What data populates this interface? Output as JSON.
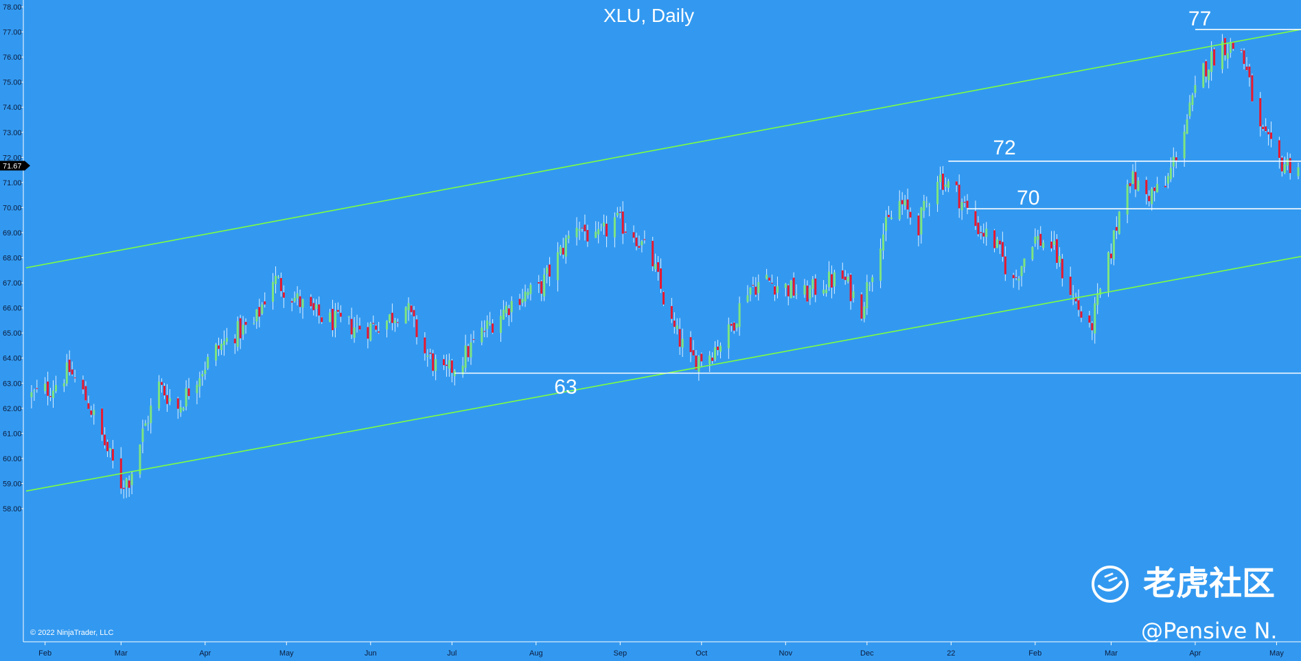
{
  "chart_data": {
    "type": "candlestick",
    "title": "XLU, Daily",
    "ylim": [
      57.5,
      78.2
    ],
    "y_ticks": [
      "58.00",
      "59.00",
      "60.00",
      "61.00",
      "62.00",
      "63.00",
      "64.00",
      "65.00",
      "66.00",
      "67.00",
      "68.00",
      "69.00",
      "70.00",
      "71.00",
      "72.00",
      "73.00",
      "74.00",
      "75.00",
      "76.00",
      "77.00",
      "78.00"
    ],
    "x_ticks": [
      {
        "label": "Feb",
        "date": "2021-02-01"
      },
      {
        "label": "Mar",
        "date": "2021-03-01"
      },
      {
        "label": "Apr",
        "date": "2021-04-01"
      },
      {
        "label": "May",
        "date": "2021-05-01"
      },
      {
        "label": "Jun",
        "date": "2021-06-01"
      },
      {
        "label": "Jul",
        "date": "2021-07-01"
      },
      {
        "label": "Aug",
        "date": "2021-08-01"
      },
      {
        "label": "Sep",
        "date": "2021-09-01"
      },
      {
        "label": "Oct",
        "date": "2021-10-01"
      },
      {
        "label": "Nov",
        "date": "2021-11-01"
      },
      {
        "label": "Dec",
        "date": "2021-12-01"
      },
      {
        "label": "22",
        "date": "2022-01-01"
      },
      {
        "label": "Feb",
        "date": "2022-02-01"
      },
      {
        "label": "Mar",
        "date": "2022-03-01"
      },
      {
        "label": "Apr",
        "date": "2022-04-01"
      },
      {
        "label": "May",
        "date": "2022-05-01"
      }
    ],
    "x_range": [
      "2021-01-25",
      "2022-05-10"
    ],
    "current_price": "71.67",
    "price_series": [
      [
        "2021-01-27",
        62.5
      ],
      [
        "2021-02-03",
        62.8
      ],
      [
        "2021-02-10",
        63.5
      ],
      [
        "2021-02-17",
        62.2
      ],
      [
        "2021-02-24",
        60.3
      ],
      [
        "2021-03-01",
        59.0
      ],
      [
        "2021-03-04",
        59.2
      ],
      [
        "2021-03-09",
        61.0
      ],
      [
        "2021-03-15",
        62.9
      ],
      [
        "2021-03-22",
        62.0
      ],
      [
        "2021-03-29",
        63.3
      ],
      [
        "2021-04-05",
        64.3
      ],
      [
        "2021-04-12",
        65.0
      ],
      [
        "2021-04-19",
        65.3
      ],
      [
        "2021-04-26",
        67.2
      ],
      [
        "2021-05-03",
        66.5
      ],
      [
        "2021-05-10",
        65.8
      ],
      [
        "2021-05-17",
        65.5
      ],
      [
        "2021-05-24",
        65.3
      ],
      [
        "2021-05-31",
        65.2
      ],
      [
        "2021-06-07",
        65.5
      ],
      [
        "2021-06-14",
        66.1
      ],
      [
        "2021-06-21",
        64.2
      ],
      [
        "2021-06-28",
        63.3
      ],
      [
        "2021-07-05",
        64.0
      ],
      [
        "2021-07-12",
        65.0
      ],
      [
        "2021-07-19",
        65.8
      ],
      [
        "2021-07-26",
        66.5
      ],
      [
        "2021-08-02",
        66.7
      ],
      [
        "2021-08-09",
        68.0
      ],
      [
        "2021-08-16",
        69.4
      ],
      [
        "2021-08-23",
        68.6
      ],
      [
        "2021-08-30",
        69.5
      ],
      [
        "2021-09-06",
        69.0
      ],
      [
        "2021-09-13",
        67.8
      ],
      [
        "2021-09-20",
        65.3
      ],
      [
        "2021-09-27",
        63.9
      ],
      [
        "2021-10-04",
        64.2
      ],
      [
        "2021-10-11",
        65.0
      ],
      [
        "2021-10-18",
        66.8
      ],
      [
        "2021-10-25",
        67.1
      ],
      [
        "2021-11-01",
        66.8
      ],
      [
        "2021-11-08",
        66.5
      ],
      [
        "2021-11-15",
        67.0
      ],
      [
        "2021-11-22",
        67.2
      ],
      [
        "2021-11-29",
        66.0
      ],
      [
        "2021-12-06",
        68.8
      ],
      [
        "2021-12-13",
        70.2
      ],
      [
        "2021-12-20",
        69.3
      ],
      [
        "2021-12-27",
        71.3
      ],
      [
        "2022-01-03",
        70.6
      ],
      [
        "2022-01-10",
        69.3
      ],
      [
        "2022-01-17",
        68.6
      ],
      [
        "2022-01-24",
        67.0
      ],
      [
        "2022-01-31",
        68.8
      ],
      [
        "2022-02-07",
        68.5
      ],
      [
        "2022-02-14",
        66.7
      ],
      [
        "2022-02-21",
        65.0
      ],
      [
        "2022-02-28",
        67.8
      ],
      [
        "2022-03-07",
        71.3
      ],
      [
        "2022-03-14",
        70.5
      ],
      [
        "2022-03-21",
        70.8
      ],
      [
        "2022-03-28",
        73.2
      ],
      [
        "2022-04-04",
        75.5
      ],
      [
        "2022-04-11",
        76.5
      ],
      [
        "2022-04-18",
        76.3
      ],
      [
        "2022-04-25",
        73.0
      ],
      [
        "2022-05-02",
        71.8
      ],
      [
        "2022-05-09",
        71.7
      ]
    ],
    "horizontal_levels": [
      {
        "label": "63",
        "value": 63.4,
        "from": "2021-07-02",
        "to": "2022-05-10"
      },
      {
        "label": "72",
        "value": 71.85,
        "from": "2021-12-31",
        "to": "2022-05-10"
      },
      {
        "label": "70",
        "value": 69.95,
        "from": "2022-01-07",
        "to": "2022-05-10"
      },
      {
        "label": "77",
        "value": 77.1,
        "from": "2022-04-01",
        "to": "2022-05-10"
      }
    ],
    "trend_lines": [
      {
        "from": [
          "2021-01-25",
          67.6
        ],
        "to": [
          "2022-05-10",
          77.1
        ]
      },
      {
        "from": [
          "2021-01-25",
          58.7
        ],
        "to": [
          "2022-05-10",
          68.05
        ]
      }
    ],
    "grid": false,
    "legend": "none"
  },
  "colors": {
    "background": "#3399f0",
    "up_candle": "#7fe57f",
    "down_candle": "#e8182e",
    "wick": "#e0f0ff",
    "trend_line": "#7fff3f",
    "level_line": "#ffffff",
    "axis_text": "#0b1a3a"
  },
  "copyright": "© 2022 NinjaTrader, LLC",
  "watermark": {
    "brand": "老虎社区",
    "user": "@Pensive N.",
    "logo_icon": "tiger-logo-icon"
  }
}
